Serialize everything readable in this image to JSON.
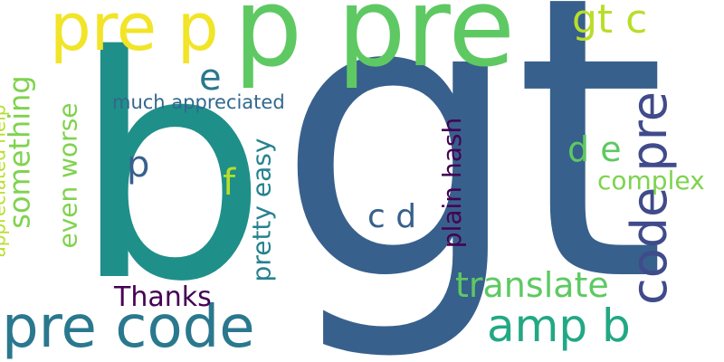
{
  "words": {
    "gt": "gt",
    "b_big": "b",
    "p_pre_top": "p pre",
    "pre_p_top": "pre p",
    "gt_c": "gt c",
    "code_pre": "code pre",
    "pre_code": "pre code",
    "amp_b": "amp b",
    "translate": "translate",
    "complex": "complex",
    "d_e": "d e",
    "c_d": "c d",
    "plain_hash": "plain hash",
    "pretty_easy": "pretty easy",
    "f": "f",
    "p_small": "p",
    "e_small": "e",
    "much_appreciated": "much appreciated",
    "thanks": "Thanks",
    "something": "something",
    "even_worse": "even worse",
    "appreciated_help": "appreciated help"
  },
  "colors": {
    "gt": "#38608c",
    "b_big": "#1f8f8a",
    "p_pre_top": "#5ec962",
    "pre_p_top": "#f2e427",
    "gt_c": "#b8de29",
    "code_pre": "#3f4b8a",
    "pre_code": "#2a788e",
    "amp_b": "#22a884",
    "translate": "#5ec962",
    "complex": "#7fd34e",
    "d_e": "#5ec962",
    "c_d": "#38608c",
    "plain_hash": "#440154",
    "pretty_easy": "#26828e",
    "f": "#b8de29",
    "p_small": "#38608c",
    "e_small": "#2a788e",
    "much_appreciated": "#31688e",
    "thanks": "#440154",
    "something": "#7fd34e",
    "even_worse": "#7fd34e",
    "appreciated_help": "#b8de29"
  }
}
